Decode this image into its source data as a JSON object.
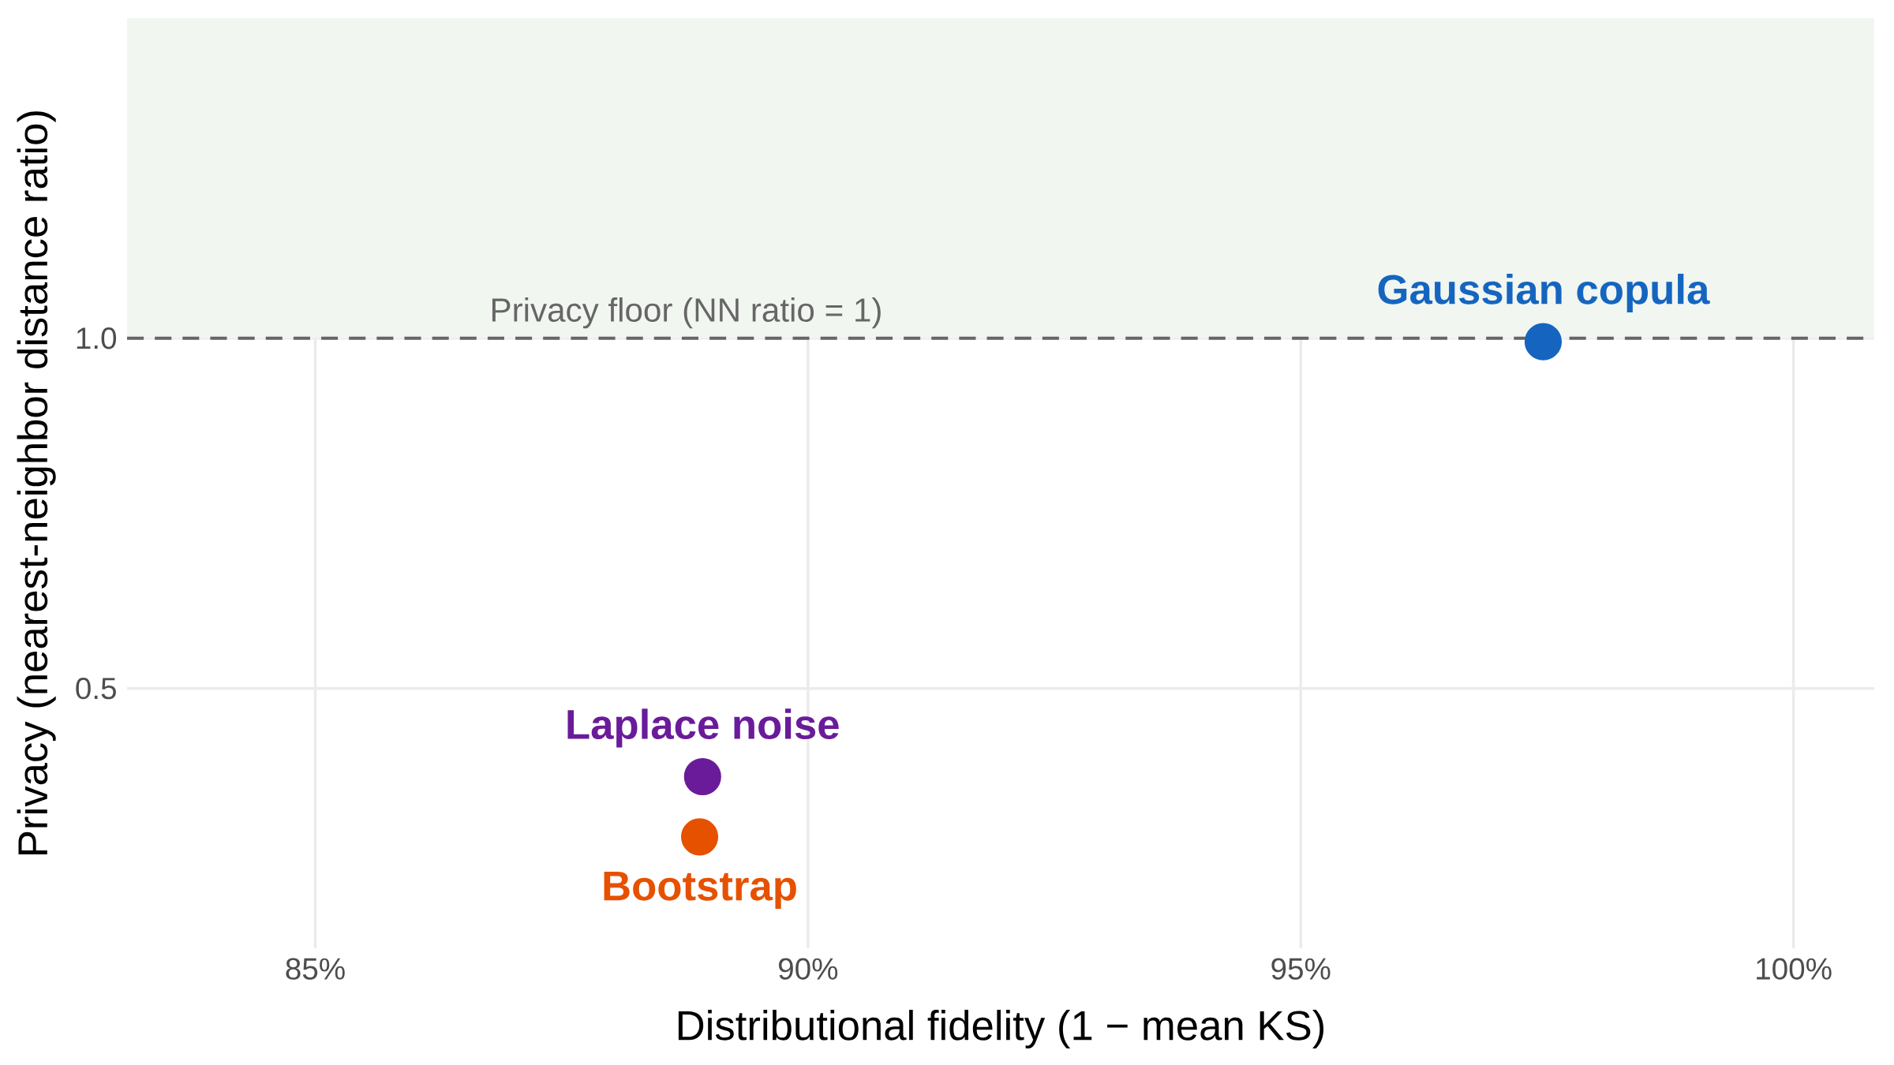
{
  "chart_data": {
    "type": "scatter",
    "xlabel": "Distributional fidelity (1 − mean KS)",
    "ylabel": "Privacy (nearest-neighbor distance ratio)",
    "xlim": [
      83.09,
      100.82
    ],
    "ylim": [
      0.129,
      1.457
    ],
    "xticks": [
      {
        "value": 85,
        "label": "85%"
      },
      {
        "value": 90,
        "label": "90%"
      },
      {
        "value": 95,
        "label": "95%"
      },
      {
        "value": 100,
        "label": "100%"
      }
    ],
    "yticks": [
      0.5,
      {
        "value": 1.0,
        "label": "1.0"
      }
    ],
    "grid": true,
    "series": [
      {
        "name": "Gaussian copula",
        "color": "#1565c0",
        "x": [
          97.46
        ],
        "values": [
          0.995
        ]
      },
      {
        "name": "Laplace noise",
        "color": "#6a1b9a",
        "x": [
          88.93
        ],
        "values": [
          0.374
        ]
      },
      {
        "name": "Bootstrap",
        "color": "#e65100",
        "x": [
          88.9
        ],
        "values": [
          0.288
        ]
      }
    ],
    "ref_lines": [
      {
        "axis": "y",
        "value": 1.0,
        "label": "Privacy floor (NN ratio = 1)",
        "color": "#666666",
        "line_style": "dashed"
      }
    ],
    "bands": [
      {
        "axis": "y",
        "from": 1.0,
        "to": 1.457,
        "color": "#f1f6f1"
      }
    ]
  }
}
